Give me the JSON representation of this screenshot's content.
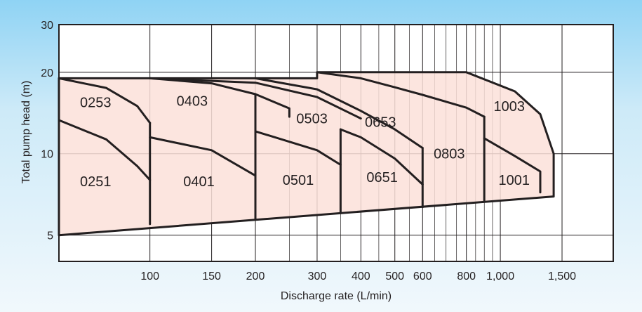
{
  "chart_data": {
    "type": "area",
    "title": "",
    "xlabel": "Discharge rate (L/min)",
    "ylabel": "Total pump head (m)",
    "x_scale": "log",
    "y_scale": "log",
    "xlim": [
      55,
      2100
    ],
    "ylim": [
      4,
      30
    ],
    "grid": true,
    "x_major_ticks": [
      {
        "value": 100,
        "label": "100"
      },
      {
        "value": 150,
        "label": "150"
      },
      {
        "value": 200,
        "label": "200"
      },
      {
        "value": 300,
        "label": "300"
      },
      {
        "value": 400,
        "label": "400"
      },
      {
        "value": 500,
        "label": "500"
      },
      {
        "value": 600,
        "label": "600"
      },
      {
        "value": 800,
        "label": "800"
      },
      {
        "value": 1000,
        "label": "1,000"
      },
      {
        "value": 1500,
        "label": "1,500"
      }
    ],
    "x_minor_gridlines": [
      250,
      350,
      450,
      550,
      650,
      700,
      750,
      850,
      900,
      950
    ],
    "y_ticks": [
      {
        "value": 5,
        "label": "5"
      },
      {
        "value": 10,
        "label": "10"
      },
      {
        "value": 20,
        "label": "20"
      },
      {
        "value": 30,
        "label": "30"
      }
    ],
    "fill_color": "#fbe1d9",
    "line_color": "#231f20",
    "envelope": [
      [
        55,
        19
      ],
      [
        100,
        19
      ],
      [
        300,
        19
      ],
      [
        300,
        20
      ],
      [
        800,
        20
      ],
      [
        1100,
        17
      ],
      [
        1300,
        14
      ],
      [
        1420,
        10
      ],
      [
        1420,
        6.95
      ],
      [
        55,
        5
      ]
    ],
    "performance_curves": [
      [
        [
          55,
          19
        ],
        [
          75,
          17.5
        ],
        [
          92,
          15
        ],
        [
          100,
          13
        ]
      ],
      [
        [
          55,
          13.3
        ],
        [
          75,
          11.3
        ],
        [
          92,
          9
        ],
        [
          100,
          8
        ]
      ],
      [
        [
          100,
          19
        ],
        [
          150,
          18.2
        ],
        [
          200,
          16.6
        ],
        [
          250,
          14.7
        ],
        [
          250,
          13.7
        ]
      ],
      [
        [
          100,
          11.5
        ],
        [
          150,
          10.3
        ],
        [
          200,
          8.3
        ]
      ],
      [
        [
          100,
          19
        ],
        [
          200,
          18.3
        ],
        [
          300,
          16.2
        ],
        [
          400,
          13.5
        ]
      ],
      [
        [
          200,
          12.1
        ],
        [
          300,
          10.3
        ],
        [
          350,
          9.1
        ]
      ],
      [
        [
          200,
          19
        ],
        [
          300,
          17.3
        ],
        [
          400,
          14.4
        ],
        [
          500,
          12.3
        ],
        [
          600,
          10.5
        ]
      ],
      [
        [
          350,
          12.3
        ],
        [
          400,
          11.5
        ],
        [
          500,
          9.6
        ],
        [
          600,
          7.7
        ]
      ],
      [
        [
          300,
          20
        ],
        [
          400,
          19
        ],
        [
          500,
          17.6
        ],
        [
          600,
          16.5
        ],
        [
          800,
          14.8
        ],
        [
          900,
          13.7
        ]
      ],
      [
        [
          900,
          11.4
        ],
        [
          1100,
          9.8
        ],
        [
          1300,
          8.6
        ],
        [
          1300,
          7.2
        ]
      ]
    ],
    "unit_boundaries": [
      [
        [
          100,
          13
        ],
        [
          100,
          5.5
        ]
      ],
      [
        [
          200,
          16.6
        ],
        [
          200,
          5.75
        ]
      ],
      [
        [
          350,
          12.3
        ],
        [
          350,
          6.05
        ]
      ],
      [
        [
          600,
          10.5
        ],
        [
          600,
          6.35
        ]
      ],
      [
        [
          900,
          13.7
        ],
        [
          900,
          6.7
        ]
      ]
    ],
    "models": [
      {
        "label": "0253",
        "x": 70,
        "y": 15.5
      },
      {
        "label": "0251",
        "x": 70,
        "y": 7.9
      },
      {
        "label": "0403",
        "x": 132,
        "y": 15.7
      },
      {
        "label": "0401",
        "x": 138,
        "y": 7.9
      },
      {
        "label": "0503",
        "x": 290,
        "y": 13.5
      },
      {
        "label": "0501",
        "x": 265,
        "y": 8.0
      },
      {
        "label": "0653",
        "x": 455,
        "y": 13.1
      },
      {
        "label": "0651",
        "x": 460,
        "y": 8.2
      },
      {
        "label": "0803",
        "x": 715,
        "y": 10.0
      },
      {
        "label": "1003",
        "x": 1060,
        "y": 15.0
      },
      {
        "label": "1001",
        "x": 1095,
        "y": 8.0
      }
    ]
  }
}
